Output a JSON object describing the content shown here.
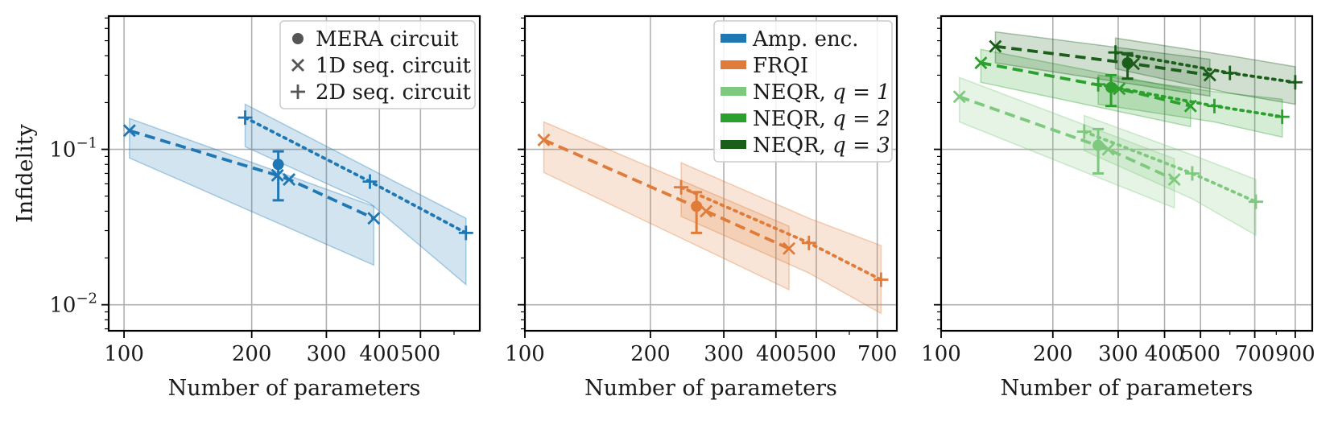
{
  "chart_data": [
    {
      "type": "line",
      "panel": "left",
      "xscale": "log",
      "yscale": "log",
      "xlim": [
        92,
        690
      ],
      "ylim": [
        0.0068,
        0.72
      ],
      "xticks": [
        100,
        200,
        300,
        400,
        500
      ],
      "xtick_labels": [
        "100",
        "200",
        "300",
        "400",
        "500"
      ],
      "yticks": [
        0.1,
        0.01
      ],
      "ytick_labels": [
        {
          "base": "10",
          "exp": "−1"
        },
        {
          "base": "10",
          "exp": "−2"
        }
      ],
      "xlabel": "Number of parameters",
      "ylabel": "Infidelity",
      "legend": {
        "placement": "top-right",
        "entries": [
          {
            "marker": "circle",
            "label": "MERA circuit"
          },
          {
            "marker": "x",
            "label": "1D seq. circuit"
          },
          {
            "marker": "plus",
            "label": "2D seq. circuit"
          }
        ]
      },
      "series": [
        {
          "name": "Amp. enc. – MERA circuit",
          "color": "#1f77b4",
          "style": "none",
          "marker": "circle",
          "points": [
            {
              "x": 231,
              "y": 0.08,
              "ylo": 0.047,
              "yhi": 0.097
            }
          ],
          "band": []
        },
        {
          "name": "Amp. enc. – 1D seq. circuit",
          "color": "#1f77b4",
          "style": "dashed",
          "marker": "x",
          "points": [
            {
              "x": 103,
              "y": 0.132
            },
            {
              "x": 230,
              "y": 0.068
            },
            {
              "x": 245,
              "y": 0.064
            },
            {
              "x": 388,
              "y": 0.036
            }
          ],
          "band": [
            [
              103,
              0.088,
              0.158
            ],
            [
              388,
              0.018,
              0.043
            ]
          ]
        },
        {
          "name": "Amp. enc. – 2D seq. circuit",
          "color": "#1f77b4",
          "style": "dotted",
          "marker": "plus",
          "points": [
            {
              "x": 193,
              "y": 0.16
            },
            {
              "x": 380,
              "y": 0.062
            },
            {
              "x": 640,
              "y": 0.029
            }
          ],
          "band": [
            [
              193,
              0.104,
              0.195
            ],
            [
              380,
              0.045,
              0.075
            ],
            [
              640,
              0.0135,
              0.036
            ]
          ]
        }
      ]
    },
    {
      "type": "line",
      "panel": "middle",
      "xscale": "log",
      "yscale": "log",
      "xlim": [
        100,
        780
      ],
      "ylim": [
        0.0068,
        0.72
      ],
      "xticks": [
        100,
        200,
        300,
        400,
        500,
        700
      ],
      "xtick_labels": [
        "100",
        "200",
        "300",
        "400",
        "500",
        "700"
      ],
      "xlabel": "Number of parameters",
      "legend": {
        "placement": "top-right",
        "entries": [
          {
            "color": "#1f77b4",
            "label": "Amp. enc."
          },
          {
            "color": "#e07b39",
            "label": "FRQI"
          },
          {
            "color": "#7fc97f",
            "label": "NEQR, ",
            "math": "q = 1"
          },
          {
            "color": "#2ca02c",
            "label": "NEQR, ",
            "math": "q = 2"
          },
          {
            "color": "#1a5e1a",
            "label": "NEQR, ",
            "math": "q = 3"
          }
        ]
      },
      "series": [
        {
          "name": "FRQI – MERA circuit",
          "color": "#e07b39",
          "style": "none",
          "marker": "circle",
          "points": [
            {
              "x": 258,
              "y": 0.043,
              "ylo": 0.029,
              "yhi": 0.053
            }
          ],
          "band": []
        },
        {
          "name": "FRQI – 1D seq. circuit",
          "color": "#e07b39",
          "style": "dashed",
          "marker": "x",
          "points": [
            {
              "x": 111,
              "y": 0.115
            },
            {
              "x": 272,
              "y": 0.04
            },
            {
              "x": 430,
              "y": 0.023
            }
          ],
          "band": [
            [
              111,
              0.071,
              0.15
            ],
            [
              430,
              0.0125,
              0.032
            ]
          ]
        },
        {
          "name": "FRQI – 2D seq. circuit",
          "color": "#e07b39",
          "style": "dotted",
          "marker": "plus",
          "points": [
            {
              "x": 237,
              "y": 0.057
            },
            {
              "x": 480,
              "y": 0.025
            },
            {
              "x": 715,
              "y": 0.0145
            }
          ],
          "band": [
            [
              237,
              0.037,
              0.082
            ],
            [
              480,
              0.016,
              0.036
            ],
            [
              715,
              0.0088,
              0.024
            ]
          ]
        }
      ]
    },
    {
      "type": "line",
      "panel": "right",
      "xscale": "log",
      "yscale": "log",
      "xlim": [
        100,
        1000
      ],
      "ylim": [
        0.0068,
        0.72
      ],
      "xticks": [
        100,
        200,
        300,
        400,
        500,
        700,
        900
      ],
      "xtick_labels": [
        "100",
        "200",
        "300",
        "400",
        "500",
        "700",
        "900"
      ],
      "xlabel": "Number of parameters",
      "series": [
        {
          "name": "NEQR q=1 – MERA circuit",
          "color": "#7fc97f",
          "style": "none",
          "marker": "circle",
          "points": [
            {
              "x": 265,
              "y": 0.106,
              "ylo": 0.07,
              "yhi": 0.135
            }
          ],
          "band": []
        },
        {
          "name": "NEQR q=1 – 1D seq. circuit",
          "color": "#7fc97f",
          "style": "dashed",
          "marker": "x",
          "points": [
            {
              "x": 112,
              "y": 0.218
            },
            {
              "x": 282,
              "y": 0.1
            },
            {
              "x": 425,
              "y": 0.064
            }
          ],
          "band": [
            [
              112,
              0.15,
              0.29
            ],
            [
              425,
              0.042,
              0.087
            ]
          ]
        },
        {
          "name": "NEQR q=1 – 2D seq. circuit",
          "color": "#7fc97f",
          "style": "dotted",
          "marker": "plus",
          "points": [
            {
              "x": 243,
              "y": 0.13
            },
            {
              "x": 475,
              "y": 0.07
            },
            {
              "x": 705,
              "y": 0.046
            }
          ],
          "band": [
            [
              243,
              0.098,
              0.165
            ],
            [
              475,
              0.048,
              0.092
            ],
            [
              705,
              0.028,
              0.064
            ]
          ]
        },
        {
          "name": "NEQR q=2 – MERA circuit",
          "color": "#2ca02c",
          "style": "none",
          "marker": "circle",
          "points": [
            {
              "x": 287,
              "y": 0.25,
              "ylo": 0.19,
              "yhi": 0.3
            }
          ],
          "band": []
        },
        {
          "name": "NEQR q=2 – 1D seq. circuit",
          "color": "#2ca02c",
          "style": "dashed",
          "marker": "x",
          "points": [
            {
              "x": 128,
              "y": 0.36
            },
            {
              "x": 302,
              "y": 0.245
            },
            {
              "x": 470,
              "y": 0.19
            }
          ],
          "band": [
            [
              128,
              0.27,
              0.44
            ],
            [
              470,
              0.14,
              0.24
            ]
          ]
        },
        {
          "name": "NEQR q=2 – 2D seq. circuit",
          "color": "#2ca02c",
          "style": "dotted",
          "marker": "plus",
          "points": [
            {
              "x": 265,
              "y": 0.262
            },
            {
              "x": 545,
              "y": 0.19
            },
            {
              "x": 830,
              "y": 0.162
            }
          ],
          "band": [
            [
              265,
              0.195,
              0.3
            ],
            [
              545,
              0.15,
              0.235
            ],
            [
              830,
              0.12,
              0.21
            ]
          ]
        },
        {
          "name": "NEQR q=3 – MERA circuit",
          "color": "#1a5e1a",
          "style": "none",
          "marker": "circle",
          "points": [
            {
              "x": 318,
              "y": 0.36,
              "ylo": 0.285,
              "yhi": 0.415
            }
          ],
          "band": []
        },
        {
          "name": "NEQR q=3 – 1D seq. circuit",
          "color": "#1a5e1a",
          "style": "dashed",
          "marker": "x",
          "points": [
            {
              "x": 140,
              "y": 0.46
            },
            {
              "x": 330,
              "y": 0.355
            },
            {
              "x": 530,
              "y": 0.3
            }
          ],
          "band": [
            [
              140,
              0.36,
              0.57
            ],
            [
              530,
              0.22,
              0.38
            ]
          ]
        },
        {
          "name": "NEQR q=3 – 2D seq. circuit",
          "color": "#1a5e1a",
          "style": "dotted",
          "marker": "plus",
          "points": [
            {
              "x": 295,
              "y": 0.42
            },
            {
              "x": 600,
              "y": 0.31
            },
            {
              "x": 900,
              "y": 0.27
            }
          ],
          "band": [
            [
              295,
              0.33,
              0.52
            ],
            [
              600,
              0.23,
              0.4
            ],
            [
              900,
              0.195,
              0.34
            ]
          ]
        }
      ]
    }
  ]
}
